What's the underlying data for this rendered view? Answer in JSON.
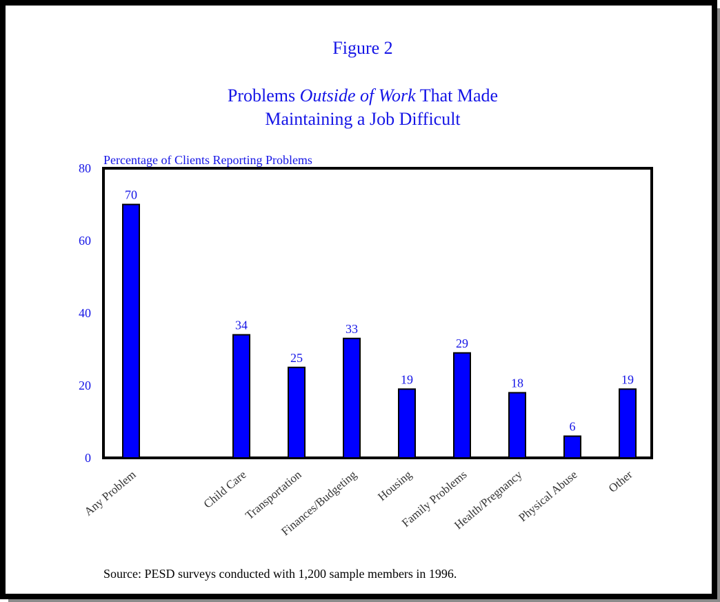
{
  "figure_label": "Figure 2",
  "title": {
    "line1_before": "Problems ",
    "line1_italic": "Outside of Work",
    "line1_after": " That Made",
    "line2": "Maintaining a Job Difficult"
  },
  "source": "Source:  PESD surveys conducted with 1,200 sample members in 1996.",
  "colors": {
    "text": "#1414e6",
    "bar": "#0000ff",
    "axis": "#000000",
    "tick_label": "#333333"
  },
  "chart_data": {
    "type": "bar",
    "ylabel": "Percentage of Clients Reporting Problems",
    "xlabel": "",
    "ylim": [
      0,
      80
    ],
    "yticks": [
      0,
      20,
      40,
      60,
      80
    ],
    "grid": false,
    "categories": [
      "Any Problem",
      "Child Care",
      "Transportation",
      "Finances/Budgeting",
      "Housing",
      "Family Problems",
      "Health/Pregnancy",
      "Physical Abuse",
      "Other"
    ],
    "values": [
      70,
      34,
      25,
      33,
      19,
      29,
      18,
      6,
      19
    ],
    "data_labels": [
      "70",
      "34",
      "25",
      "33",
      "19",
      "29",
      "18",
      "6",
      "19"
    ]
  }
}
